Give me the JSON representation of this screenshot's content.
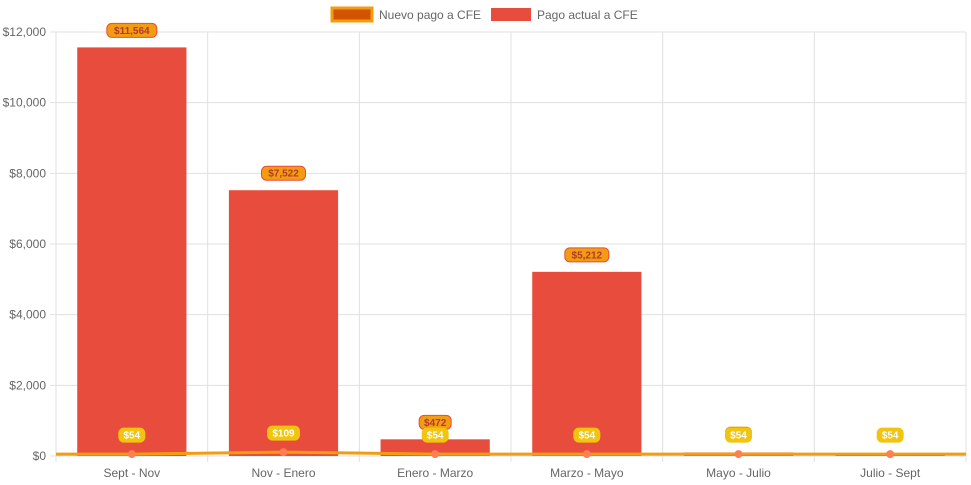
{
  "chart_data": {
    "type": "bar",
    "categories": [
      "Sept - Nov",
      "Nov - Enero",
      "Enero - Marzo",
      "Marzo - Mayo",
      "Mayo - Julio",
      "Julio - Sept"
    ],
    "ylim": [
      0,
      12000
    ],
    "yticks": [
      0,
      2000,
      4000,
      6000,
      8000,
      10000,
      12000
    ],
    "ytick_labels": [
      "$0",
      "$2,000",
      "$4,000",
      "$6,000",
      "$8,000",
      "$10,000",
      "$12,000"
    ],
    "grid": true,
    "legend_position": "top-center",
    "series": [
      {
        "name": "Nuevo pago a CFE",
        "kind": "line",
        "color": "#f39c12",
        "point_color": "#ff7f50",
        "label_bg": "#f1c40f",
        "values": [
          54,
          109,
          54,
          54,
          54,
          54
        ],
        "labels": [
          "$54",
          "$109",
          "$54",
          "$54",
          "$54",
          "$54"
        ]
      },
      {
        "name": "Pago actual a CFE",
        "kind": "bar",
        "color": "#e74c3c",
        "label_bg": "#f39c12",
        "label_text_color": "#b03a2e",
        "values": [
          11564,
          7522,
          472,
          5212,
          100,
          80
        ],
        "labels": [
          "$11,564",
          "$7,522",
          "$472",
          "$5,212",
          "",
          ""
        ]
      }
    ]
  }
}
